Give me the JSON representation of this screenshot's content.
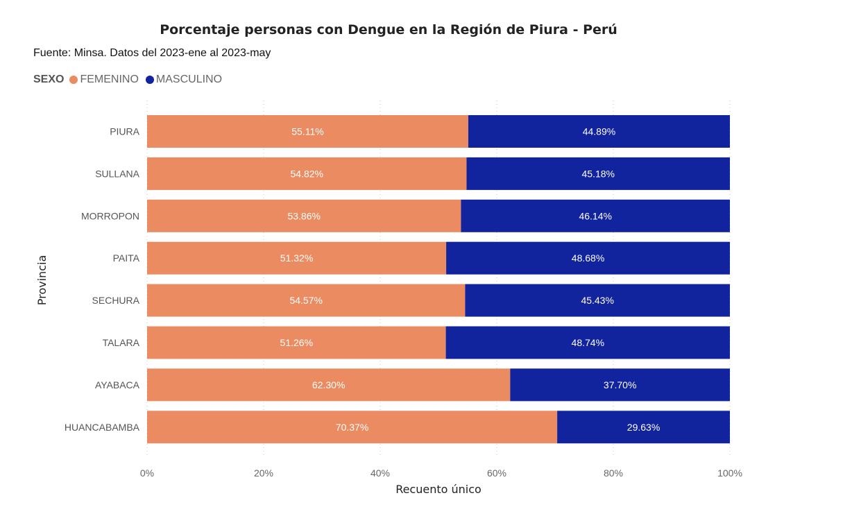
{
  "chart_data": {
    "type": "bar",
    "orientation": "horizontal",
    "stacked": true,
    "title": "Porcentaje personas con Dengue en la Región de Piura - Perú",
    "subtitle": "Fuente: Minsa. Datos del 2023-ene al 2023-may",
    "legend_title": "SEXO",
    "legend_position": "top-left",
    "xlabel": "Recuento único",
    "ylabel": "Provincia",
    "xlim": [
      0,
      100
    ],
    "xticks": [
      0,
      20,
      40,
      60,
      80,
      100
    ],
    "xtick_labels": [
      "0%",
      "20%",
      "40%",
      "60%",
      "80%",
      "100%"
    ],
    "grid": true,
    "categories": [
      "PIURA",
      "SULLANA",
      "MORROPON",
      "PAITA",
      "SECHURA",
      "TALARA",
      "AYABACA",
      "HUANCABAMBA"
    ],
    "series": [
      {
        "name": "FEMENINO",
        "color": "#EB8B62",
        "values": [
          55.11,
          54.82,
          53.86,
          51.32,
          54.57,
          51.26,
          62.3,
          70.37
        ],
        "labels": [
          "55.11%",
          "54.82%",
          "53.86%",
          "51.32%",
          "54.57%",
          "51.26%",
          "62.30%",
          "70.37%"
        ]
      },
      {
        "name": "MASCULINO",
        "color": "#12239E",
        "values": [
          44.89,
          45.18,
          46.14,
          48.68,
          45.43,
          48.74,
          37.7,
          29.63
        ],
        "labels": [
          "44.89%",
          "45.18%",
          "46.14%",
          "48.68%",
          "45.43%",
          "48.74%",
          "37.70%",
          "29.63%"
        ]
      }
    ]
  }
}
